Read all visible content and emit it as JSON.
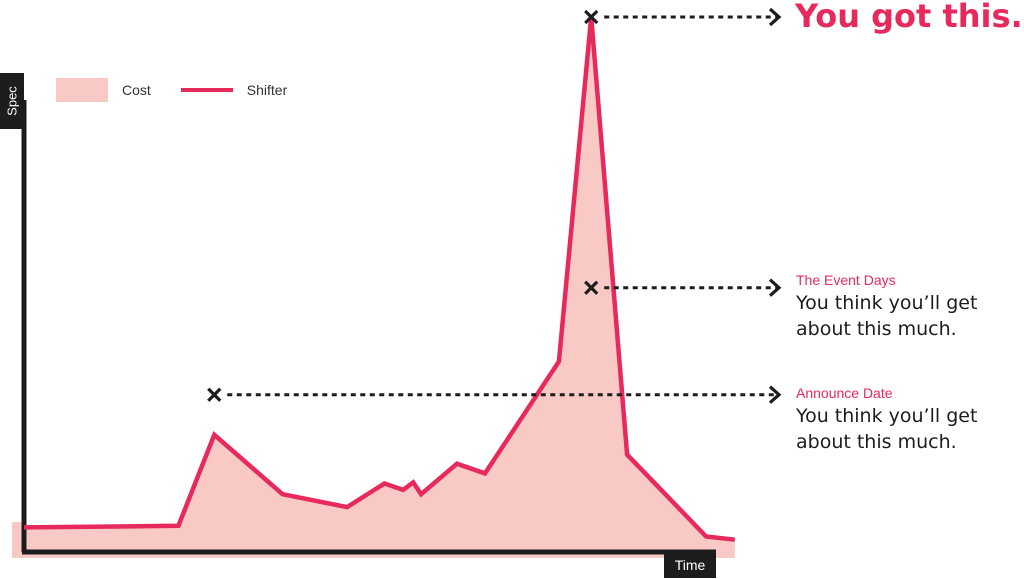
{
  "colors": {
    "accent": "#e8295c",
    "area_fill": "#f8c9c5",
    "axis": "#1d1d1d",
    "marker": "#1d1d1d"
  },
  "chart_data": {
    "type": "area",
    "xlabel": "Time",
    "ylabel": "Spec",
    "xlim": [
      0,
      100
    ],
    "ylim": [
      0,
      100
    ],
    "legend_position": "top-left",
    "legend": [
      {
        "name": "Cost",
        "style": "area"
      },
      {
        "name": "Shifter",
        "style": "line"
      }
    ],
    "series": [
      {
        "name": "Shifter",
        "x": [
          0,
          21.5,
          26.5,
          36,
          45,
          50.2,
          52.8,
          54.2,
          55.3,
          60.3,
          64.2,
          74.5,
          79,
          84,
          95,
          99
        ],
        "y": [
          4.6,
          4.9,
          21.9,
          10.8,
          8.4,
          12.8,
          11.6,
          13.0,
          10.8,
          16.5,
          14.7,
          35.6,
          100,
          18.2,
          2.9,
          2.3
        ]
      }
    ],
    "annotations": [
      {
        "x": 26.5,
        "y": 29.4,
        "label": "Announce Date",
        "text": "You think you’ll get about this much."
      },
      {
        "x": 79,
        "y": 49.4,
        "label": "The Event Days",
        "text": "You think you’ll get about this much."
      },
      {
        "x": 79,
        "y": 100,
        "label": "",
        "text": "You got this."
      }
    ]
  }
}
